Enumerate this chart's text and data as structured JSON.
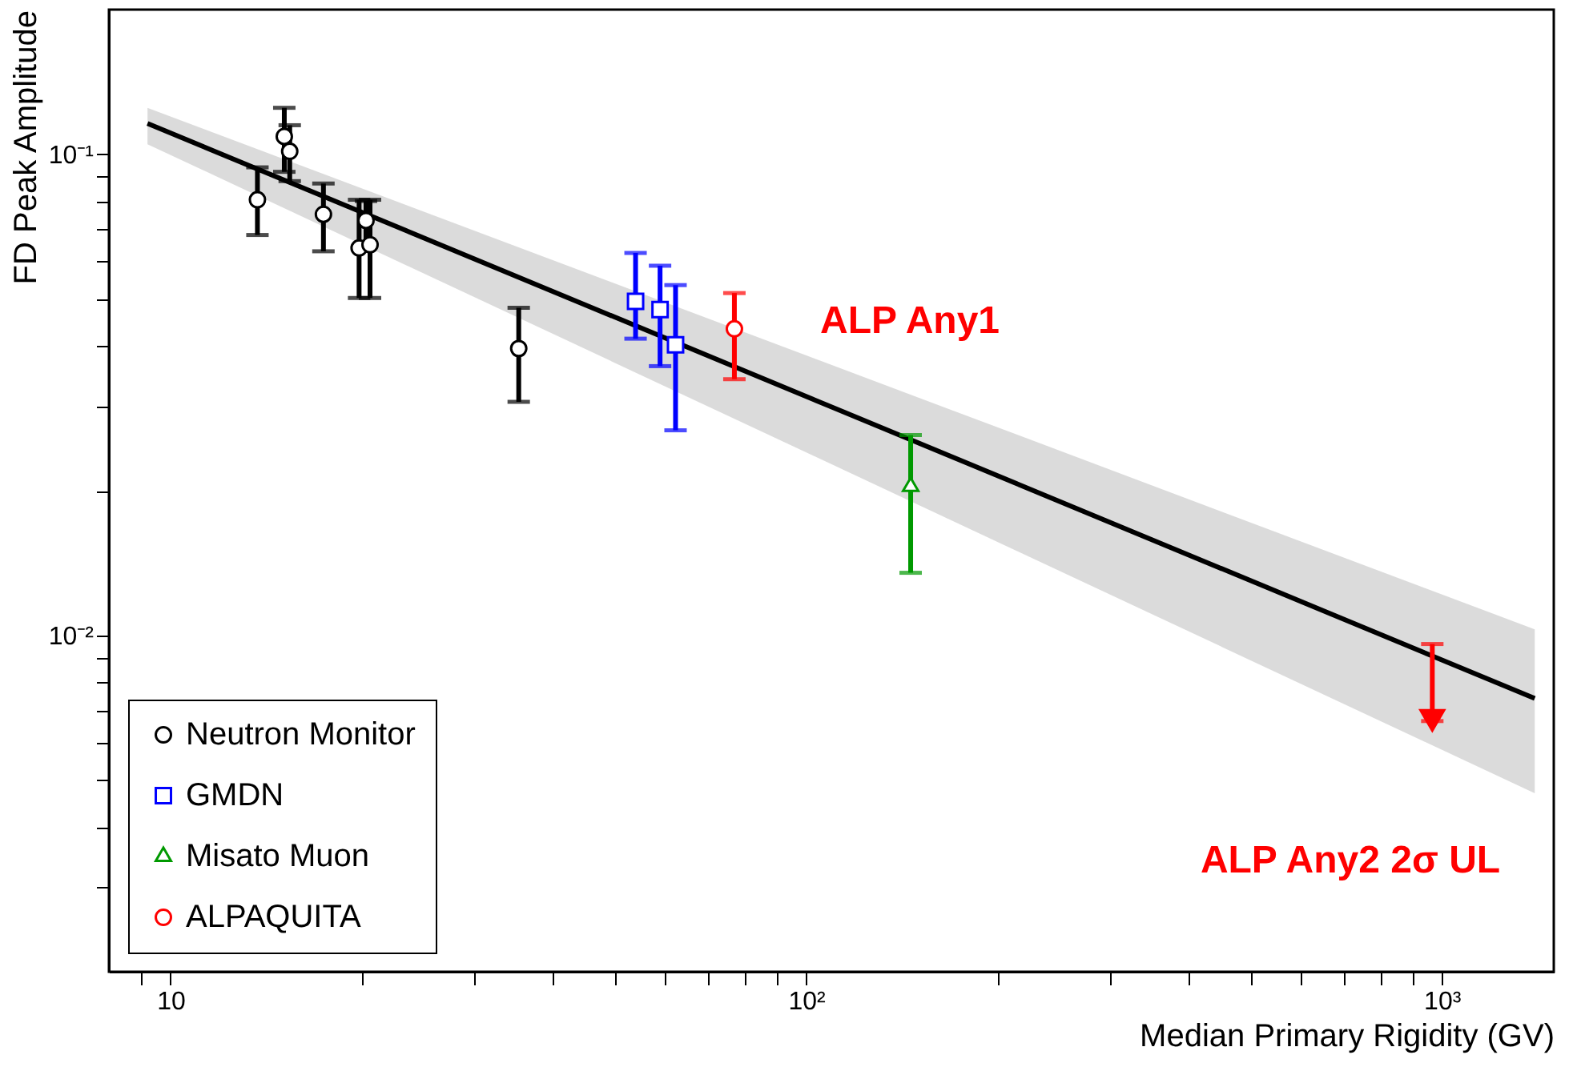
{
  "chart_data": {
    "type": "scatter",
    "xlabel": "Median Primary Rigidity (GV)",
    "ylabel": "FD Peak Amplitude",
    "log": "xy",
    "grid": false,
    "legend": "bottom left",
    "xlim": [
      8,
      1500
    ],
    "ylim": [
      0.002,
      0.2
    ],
    "xticks": [
      {
        "value": 9,
        "label": null
      },
      {
        "value": 10,
        "label": "10"
      },
      {
        "value": 20,
        "label": null
      },
      {
        "value": 30,
        "label": null
      },
      {
        "value": 40,
        "label": null
      },
      {
        "value": 50,
        "label": null
      },
      {
        "value": 60,
        "label": null
      },
      {
        "value": 70,
        "label": null
      },
      {
        "value": 80,
        "label": null
      },
      {
        "value": 90,
        "label": null
      },
      {
        "value": 100,
        "label": "10²"
      },
      {
        "value": 200,
        "label": null
      },
      {
        "value": 300,
        "label": null
      },
      {
        "value": 400,
        "label": null
      },
      {
        "value": 500,
        "label": null
      },
      {
        "value": 600,
        "label": null
      },
      {
        "value": 700,
        "label": null
      },
      {
        "value": 800,
        "label": null
      },
      {
        "value": 900,
        "label": null
      },
      {
        "value": 1000,
        "label": "10³"
      }
    ],
    "yticks": [
      {
        "value": 0.003,
        "label": null
      },
      {
        "value": 0.004,
        "label": null
      },
      {
        "value": 0.005,
        "label": null
      },
      {
        "value": 0.006,
        "label": null
      },
      {
        "value": 0.007,
        "label": null
      },
      {
        "value": 0.008,
        "label": null
      },
      {
        "value": 0.009,
        "label": null
      },
      {
        "value": 0.01,
        "label": "10⁻²"
      },
      {
        "value": 0.02,
        "label": null
      },
      {
        "value": 0.03,
        "label": null
      },
      {
        "value": 0.04,
        "label": null
      },
      {
        "value": 0.05,
        "label": null
      },
      {
        "value": 0.06,
        "label": null
      },
      {
        "value": 0.07,
        "label": null
      },
      {
        "value": 0.08,
        "label": null
      },
      {
        "value": 0.09,
        "label": null
      },
      {
        "value": 0.1,
        "label": "10⁻¹"
      }
    ],
    "series": [
      {
        "type": "line",
        "color": "#000000",
        "x": [
          9.2,
          1400
        ],
        "values": [
          0.116,
          0.0074
        ],
        "lower": [
          0.105,
          0.0047
        ],
        "upper": [
          0.125,
          0.0103
        ]
      },
      {
        "name": "Neutron Monitor",
        "color": "#000000",
        "marker": "circle",
        "x": [
          13.7,
          15.1,
          15.4,
          17.4,
          19.8,
          20.3,
          20.6,
          35.3
        ],
        "values": [
          0.0805,
          0.109,
          0.1015,
          0.0751,
          0.0639,
          0.0729,
          0.0649,
          0.0395
        ],
        "errors": [
          [
            0.068,
            0.094
          ],
          [
            0.092,
            0.125
          ],
          [
            0.088,
            0.115
          ],
          [
            0.0629,
            0.087
          ],
          [
            0.0503,
            0.0805
          ],
          [
            0.065,
            0.08
          ],
          [
            0.0503,
            0.0805
          ],
          [
            0.0306,
            0.048
          ]
        ]
      },
      {
        "name": "GMDN",
        "color": "#0000ff",
        "marker": "square",
        "x": [
          53.9,
          58.9,
          62.3
        ],
        "values": [
          0.0495,
          0.0476,
          0.0402
        ],
        "errors": [
          [
            0.0414,
            0.0624
          ],
          [
            0.0363,
            0.0587
          ],
          [
            0.0267,
            0.0535
          ]
        ]
      },
      {
        "name": "Misato Muon",
        "color": "#009900",
        "marker": "triangle",
        "x": [
          146
        ],
        "values": [
          0.0204
        ],
        "errors": [
          [
            0.0135,
            0.0261
          ]
        ]
      },
      {
        "name": "ALPAQUITA",
        "color": "#ff0000",
        "marker": "circle",
        "x": [
          77.1
        ],
        "values": [
          0.0434
        ],
        "errors": [
          [
            0.0341,
            0.0515
          ]
        ]
      },
      {
        "color": "#ff0000",
        "marker": "triangle-down",
        "x": [
          966
        ],
        "values": [
          0.00664
        ],
        "errors": [
          [
            0.00664,
            0.0096
          ]
        ]
      }
    ],
    "annotations": [
      "ALP Any1",
      "ALP Any2 2σ UL"
    ]
  }
}
